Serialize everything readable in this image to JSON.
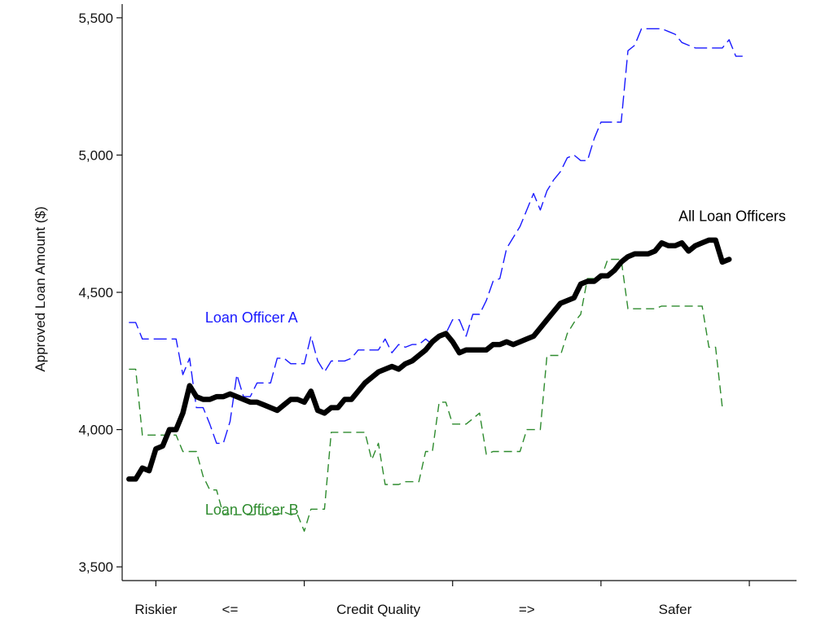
{
  "chart_data": {
    "type": "line",
    "title": "",
    "xlabel": "",
    "ylabel": "Approved Loan Amount ($)",
    "xlim": [
      0,
      100
    ],
    "ylim": [
      3450,
      5550
    ],
    "yticks": [
      3500,
      4000,
      4500,
      5000,
      5500
    ],
    "ytick_labels": [
      "3,500",
      "4,000",
      "4,500",
      "5,000",
      "5,500"
    ],
    "xticks": [
      5,
      27,
      49,
      71,
      93
    ],
    "x_categories": [
      {
        "x": 5,
        "label": "Riskier"
      },
      {
        "x": 16,
        "label": "<="
      },
      {
        "x": 38,
        "label": "Credit Quality"
      },
      {
        "x": 60,
        "label": "=>"
      },
      {
        "x": 82,
        "label": "Safer"
      }
    ],
    "series": [
      {
        "name": "Loan Officer A",
        "label": "Loan Officer A",
        "color": "#1a1aff",
        "style": "long-dash",
        "label_anchor": [
          12.3,
          4390
        ],
        "points": [
          [
            1,
            4390
          ],
          [
            2,
            4390
          ],
          [
            3,
            4330
          ],
          [
            4,
            4330
          ],
          [
            5,
            4330
          ],
          [
            6,
            4330
          ],
          [
            7,
            4330
          ],
          [
            8,
            4330
          ],
          [
            9,
            4200
          ],
          [
            10,
            4260
          ],
          [
            11,
            4080
          ],
          [
            12,
            4080
          ],
          [
            13,
            4020
          ],
          [
            14,
            3950
          ],
          [
            15,
            3950
          ],
          [
            16,
            4030
          ],
          [
            17,
            4200
          ],
          [
            18,
            4120
          ],
          [
            19,
            4120
          ],
          [
            20,
            4170
          ],
          [
            21,
            4170
          ],
          [
            22,
            4170
          ],
          [
            23,
            4260
          ],
          [
            24,
            4260
          ],
          [
            25,
            4240
          ],
          [
            26,
            4240
          ],
          [
            27,
            4240
          ],
          [
            28,
            4340
          ],
          [
            29,
            4250
          ],
          [
            30,
            4210
          ],
          [
            31,
            4250
          ],
          [
            32,
            4250
          ],
          [
            33,
            4250
          ],
          [
            34,
            4260
          ],
          [
            35,
            4290
          ],
          [
            36,
            4290
          ],
          [
            37,
            4290
          ],
          [
            38,
            4290
          ],
          [
            39,
            4330
          ],
          [
            40,
            4280
          ],
          [
            41,
            4310
          ],
          [
            42,
            4300
          ],
          [
            43,
            4310
          ],
          [
            44,
            4310
          ],
          [
            45,
            4330
          ],
          [
            46,
            4310
          ],
          [
            47,
            4340
          ],
          [
            48,
            4350
          ],
          [
            49,
            4400
          ],
          [
            50,
            4400
          ],
          [
            51,
            4340
          ],
          [
            52,
            4420
          ],
          [
            53,
            4420
          ],
          [
            54,
            4470
          ],
          [
            55,
            4540
          ],
          [
            56,
            4550
          ],
          [
            57,
            4660
          ],
          [
            58,
            4700
          ],
          [
            59,
            4740
          ],
          [
            60,
            4800
          ],
          [
            61,
            4860
          ],
          [
            62,
            4800
          ],
          [
            63,
            4870
          ],
          [
            64,
            4910
          ],
          [
            65,
            4940
          ],
          [
            66,
            4990
          ],
          [
            67,
            5000
          ],
          [
            68,
            4980
          ],
          [
            69,
            4980
          ],
          [
            70,
            5060
          ],
          [
            71,
            5120
          ],
          [
            72,
            5120
          ],
          [
            73,
            5120
          ],
          [
            74,
            5120
          ],
          [
            75,
            5380
          ],
          [
            76,
            5400
          ],
          [
            77,
            5460
          ],
          [
            78,
            5460
          ],
          [
            79,
            5460
          ],
          [
            80,
            5460
          ],
          [
            81,
            5450
          ],
          [
            82,
            5440
          ],
          [
            83,
            5410
          ],
          [
            84,
            5400
          ],
          [
            85,
            5390
          ],
          [
            86,
            5390
          ],
          [
            87,
            5390
          ],
          [
            88,
            5390
          ],
          [
            89,
            5390
          ],
          [
            90,
            5420
          ],
          [
            91,
            5360
          ],
          [
            92,
            5360
          ]
        ]
      },
      {
        "name": "Loan Officer B",
        "label": "Loan Officer B",
        "color": "#2e8b2e",
        "style": "dash",
        "label_anchor": [
          12.3,
          3690
        ],
        "points": [
          [
            1,
            4220
          ],
          [
            2,
            4220
          ],
          [
            3,
            3980
          ],
          [
            4,
            3980
          ],
          [
            5,
            3980
          ],
          [
            6,
            3980
          ],
          [
            7,
            3980
          ],
          [
            8,
            3980
          ],
          [
            9,
            3920
          ],
          [
            10,
            3920
          ],
          [
            11,
            3920
          ],
          [
            12,
            3830
          ],
          [
            13,
            3780
          ],
          [
            14,
            3780
          ],
          [
            15,
            3690
          ],
          [
            16,
            3690
          ],
          [
            17,
            3690
          ],
          [
            18,
            3690
          ],
          [
            19,
            3690
          ],
          [
            20,
            3690
          ],
          [
            21,
            3690
          ],
          [
            22,
            3690
          ],
          [
            23,
            3690
          ],
          [
            24,
            3700
          ],
          [
            25,
            3690
          ],
          [
            26,
            3690
          ],
          [
            27,
            3630
          ],
          [
            28,
            3710
          ],
          [
            29,
            3710
          ],
          [
            30,
            3710
          ],
          [
            31,
            3990
          ],
          [
            32,
            3990
          ],
          [
            33,
            3990
          ],
          [
            34,
            3990
          ],
          [
            35,
            3990
          ],
          [
            36,
            3990
          ],
          [
            37,
            3890
          ],
          [
            38,
            3950
          ],
          [
            39,
            3800
          ],
          [
            40,
            3800
          ],
          [
            41,
            3800
          ],
          [
            42,
            3810
          ],
          [
            43,
            3810
          ],
          [
            44,
            3810
          ],
          [
            45,
            3920
          ],
          [
            46,
            3920
          ],
          [
            47,
            4100
          ],
          [
            48,
            4100
          ],
          [
            49,
            4020
          ],
          [
            50,
            4020
          ],
          [
            51,
            4020
          ],
          [
            52,
            4040
          ],
          [
            53,
            4060
          ],
          [
            54,
            3910
          ],
          [
            55,
            3920
          ],
          [
            56,
            3920
          ],
          [
            57,
            3920
          ],
          [
            58,
            3920
          ],
          [
            59,
            3920
          ],
          [
            60,
            4000
          ],
          [
            61,
            4000
          ],
          [
            62,
            4000
          ],
          [
            63,
            4270
          ],
          [
            64,
            4270
          ],
          [
            65,
            4270
          ],
          [
            66,
            4350
          ],
          [
            67,
            4390
          ],
          [
            68,
            4420
          ],
          [
            69,
            4550
          ],
          [
            70,
            4550
          ],
          [
            71,
            4550
          ],
          [
            72,
            4620
          ],
          [
            73,
            4620
          ],
          [
            74,
            4620
          ],
          [
            75,
            4440
          ],
          [
            76,
            4440
          ],
          [
            77,
            4440
          ],
          [
            78,
            4440
          ],
          [
            79,
            4440
          ],
          [
            80,
            4450
          ],
          [
            81,
            4450
          ],
          [
            82,
            4450
          ],
          [
            83,
            4450
          ],
          [
            84,
            4450
          ],
          [
            85,
            4450
          ],
          [
            86,
            4450
          ],
          [
            87,
            4300
          ],
          [
            88,
            4300
          ],
          [
            89,
            4080
          ]
        ]
      },
      {
        "name": "All Loan Officers",
        "label": "All Loan Officers",
        "color": "#000000",
        "style": "solid-thick",
        "label_anchor": [
          82.5,
          4760
        ],
        "points": [
          [
            1,
            3820
          ],
          [
            2,
            3820
          ],
          [
            3,
            3860
          ],
          [
            4,
            3850
          ],
          [
            5,
            3930
          ],
          [
            6,
            3940
          ],
          [
            7,
            4000
          ],
          [
            8,
            4000
          ],
          [
            9,
            4060
          ],
          [
            10,
            4160
          ],
          [
            11,
            4120
          ],
          [
            12,
            4110
          ],
          [
            13,
            4110
          ],
          [
            14,
            4120
          ],
          [
            15,
            4120
          ],
          [
            16,
            4130
          ],
          [
            17,
            4120
          ],
          [
            18,
            4110
          ],
          [
            19,
            4100
          ],
          [
            20,
            4100
          ],
          [
            21,
            4090
          ],
          [
            22,
            4080
          ],
          [
            23,
            4070
          ],
          [
            24,
            4090
          ],
          [
            25,
            4110
          ],
          [
            26,
            4110
          ],
          [
            27,
            4100
          ],
          [
            28,
            4140
          ],
          [
            29,
            4070
          ],
          [
            30,
            4060
          ],
          [
            31,
            4080
          ],
          [
            32,
            4080
          ],
          [
            33,
            4110
          ],
          [
            34,
            4110
          ],
          [
            35,
            4140
          ],
          [
            36,
            4170
          ],
          [
            37,
            4190
          ],
          [
            38,
            4210
          ],
          [
            39,
            4220
          ],
          [
            40,
            4230
          ],
          [
            41,
            4220
          ],
          [
            42,
            4240
          ],
          [
            43,
            4250
          ],
          [
            44,
            4270
          ],
          [
            45,
            4290
          ],
          [
            46,
            4320
          ],
          [
            47,
            4340
          ],
          [
            48,
            4350
          ],
          [
            49,
            4320
          ],
          [
            50,
            4280
          ],
          [
            51,
            4290
          ],
          [
            52,
            4290
          ],
          [
            53,
            4290
          ],
          [
            54,
            4290
          ],
          [
            55,
            4310
          ],
          [
            56,
            4310
          ],
          [
            57,
            4320
          ],
          [
            58,
            4310
          ],
          [
            59,
            4320
          ],
          [
            60,
            4330
          ],
          [
            61,
            4340
          ],
          [
            62,
            4370
          ],
          [
            63,
            4400
          ],
          [
            64,
            4430
          ],
          [
            65,
            4460
          ],
          [
            66,
            4470
          ],
          [
            67,
            4480
          ],
          [
            68,
            4530
          ],
          [
            69,
            4540
          ],
          [
            70,
            4540
          ],
          [
            71,
            4560
          ],
          [
            72,
            4560
          ],
          [
            73,
            4580
          ],
          [
            74,
            4610
          ],
          [
            75,
            4630
          ],
          [
            76,
            4640
          ],
          [
            77,
            4640
          ],
          [
            78,
            4640
          ],
          [
            79,
            4650
          ],
          [
            80,
            4680
          ],
          [
            81,
            4670
          ],
          [
            82,
            4670
          ],
          [
            83,
            4680
          ],
          [
            84,
            4650
          ],
          [
            85,
            4670
          ],
          [
            86,
            4680
          ],
          [
            87,
            4690
          ],
          [
            88,
            4690
          ],
          [
            89,
            4610
          ],
          [
            90,
            4620
          ]
        ]
      }
    ]
  }
}
